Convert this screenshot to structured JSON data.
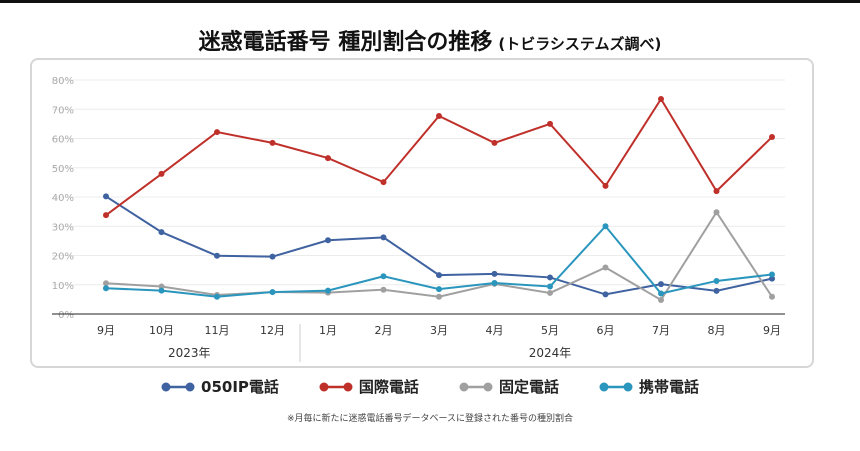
{
  "title": "迷惑電話番号 種別割合の推移",
  "subtitle": "(トビラシステムズ調べ)",
  "footnote": "※月毎に新たに迷惑電話番号データベースに登録された番号の種別割合",
  "chart_data": {
    "type": "line",
    "categories": [
      "9月",
      "10月",
      "11月",
      "12月",
      "1月",
      "2月",
      "3月",
      "4月",
      "5月",
      "6月",
      "7月",
      "8月",
      "9月"
    ],
    "year_groups": [
      {
        "label": "2023年",
        "span": 4
      },
      {
        "label": "2024年",
        "span": 9
      }
    ],
    "ylim": [
      0,
      80
    ],
    "yticks": [
      "0%",
      "10%",
      "20%",
      "30%",
      "40%",
      "50%",
      "60%",
      "70%",
      "80%"
    ],
    "grid": true,
    "legend": "bottom",
    "series": [
      {
        "name": "050IP電話",
        "color": "#3f62a0",
        "values": [
          40.2,
          28,
          19.9,
          19.6,
          25.2,
          26.2,
          13.3,
          13.7,
          12.5,
          6.7,
          10.2,
          7.9,
          12.1
        ]
      },
      {
        "name": "国際電話",
        "color": "#c0302a",
        "values": [
          33.8,
          47.9,
          62.2,
          58.5,
          53.3,
          45.1,
          67.7,
          58.5,
          65,
          43.8,
          73.5,
          42,
          60.5
        ]
      },
      {
        "name": "固定電話",
        "color": "#a0a0a0",
        "values": [
          10.5,
          9.4,
          6.5,
          7.5,
          7.3,
          8.3,
          5.9,
          10.3,
          7.2,
          15.9,
          4.8,
          34.8,
          5.9
        ]
      },
      {
        "name": "携帯電話",
        "color": "#2a96bd",
        "values": [
          8.8,
          8,
          5.9,
          7.5,
          8,
          12.9,
          8.5,
          10.6,
          9.4,
          30,
          7,
          11.3,
          13.5
        ]
      }
    ]
  }
}
